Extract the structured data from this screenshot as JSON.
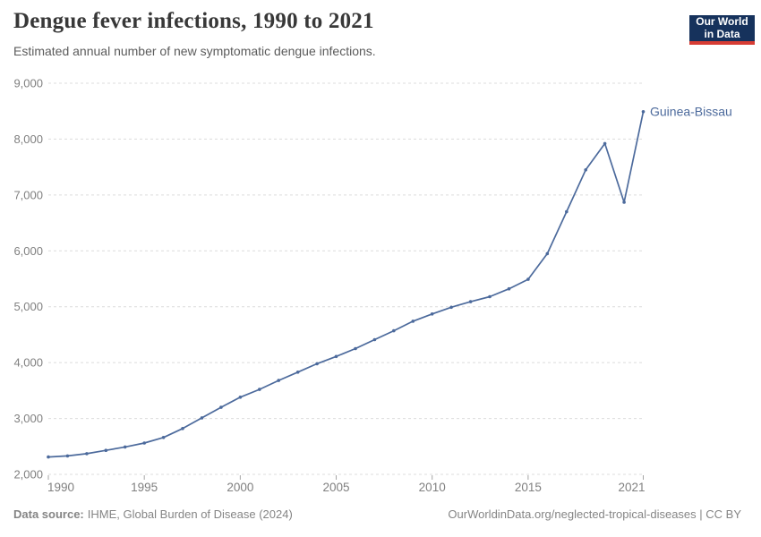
{
  "header": {
    "title": "Dengue fever infections, 1990 to 2021",
    "subtitle": "Estimated annual number of new symptomatic dengue infections.",
    "logo": {
      "line1": "Our World",
      "line2": "in Data",
      "bg_color": "#16325c",
      "bar_color": "#d73c34"
    }
  },
  "chart_data": {
    "type": "line",
    "title": "Dengue fever infections, 1990 to 2021",
    "subtitle": "Estimated annual number of new symptomatic dengue infections.",
    "xlabel": "",
    "ylabel": "",
    "xlim": [
      1990,
      2021
    ],
    "ylim": [
      2000,
      9000
    ],
    "x_ticks": [
      1990,
      1995,
      2000,
      2005,
      2010,
      2015,
      2021
    ],
    "y_ticks": [
      2000,
      3000,
      4000,
      5000,
      6000,
      7000,
      8000,
      9000
    ],
    "grid": "horizontal-dashed",
    "legend_position": "end-of-line-label",
    "series": [
      {
        "name": "Guinea-Bissau",
        "color": "#4c6a9c",
        "x": [
          1990,
          1991,
          1992,
          1993,
          1994,
          1995,
          1996,
          1997,
          1998,
          1999,
          2000,
          2001,
          2002,
          2003,
          2004,
          2005,
          2006,
          2007,
          2008,
          2009,
          2010,
          2011,
          2012,
          2013,
          2014,
          2015,
          2016,
          2017,
          2018,
          2019,
          2020,
          2021
        ],
        "values": [
          2310,
          2330,
          2370,
          2430,
          2490,
          2560,
          2660,
          2820,
          3010,
          3200,
          3380,
          3520,
          3680,
          3830,
          3980,
          4110,
          4250,
          4410,
          4570,
          4740,
          4870,
          4990,
          5090,
          5180,
          5320,
          5490,
          5950,
          6700,
          7450,
          7920,
          6870,
          8490
        ]
      }
    ]
  },
  "footer": {
    "source_label": "Data source:",
    "source_text": "IHME, Global Burden of Disease (2024)",
    "link_text": "OurWorldinData.org/neglected-tropical-diseases",
    "separator": " | ",
    "license_text": "CC BY"
  },
  "colors": {
    "line": "#4c6a9c",
    "grid": "#dcdcdc",
    "tick": "#a5a5a5",
    "axis_text": "#808080",
    "title": "#383838",
    "subtitle": "#5b5b5b",
    "footer": "#858585"
  }
}
